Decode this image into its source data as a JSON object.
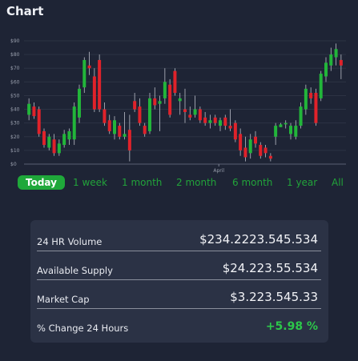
{
  "header": {
    "title": "Chart"
  },
  "chart_data": {
    "type": "candlestick",
    "ylim": [
      0,
      90
    ],
    "yticks": [
      "$0",
      "$10",
      "$20",
      "$30",
      "$40",
      "$50",
      "$60",
      "$70",
      "$80",
      "$90"
    ],
    "x_annotation": "April",
    "up_color": "#22b63a",
    "down_color": "#e0222a",
    "candles": [
      {
        "o": 36,
        "h": 48,
        "l": 32,
        "c": 44
      },
      {
        "o": 42,
        "h": 45,
        "l": 33,
        "c": 35
      },
      {
        "o": 40,
        "h": 42,
        "l": 20,
        "c": 22
      },
      {
        "o": 24,
        "h": 26,
        "l": 12,
        "c": 14
      },
      {
        "o": 12,
        "h": 22,
        "l": 10,
        "c": 20
      },
      {
        "o": 18,
        "h": 22,
        "l": 6,
        "c": 8
      },
      {
        "o": 8,
        "h": 18,
        "l": 6,
        "c": 15
      },
      {
        "o": 14,
        "h": 25,
        "l": 12,
        "c": 22
      },
      {
        "o": 18,
        "h": 26,
        "l": 14,
        "c": 24
      },
      {
        "o": 18,
        "h": 45,
        "l": 14,
        "c": 42
      },
      {
        "o": 34,
        "h": 58,
        "l": 30,
        "c": 55
      },
      {
        "o": 56,
        "h": 78,
        "l": 52,
        "c": 76
      },
      {
        "o": 72,
        "h": 82,
        "l": 65,
        "c": 70
      },
      {
        "o": 64,
        "h": 70,
        "l": 38,
        "c": 40
      },
      {
        "o": 76,
        "h": 80,
        "l": 38,
        "c": 40
      },
      {
        "o": 40,
        "h": 45,
        "l": 28,
        "c": 30
      },
      {
        "o": 32,
        "h": 36,
        "l": 22,
        "c": 24
      },
      {
        "o": 22,
        "h": 35,
        "l": 18,
        "c": 32
      },
      {
        "o": 28,
        "h": 30,
        "l": 18,
        "c": 20
      },
      {
        "o": 20,
        "h": 38,
        "l": 18,
        "c": 22
      },
      {
        "o": 25,
        "h": 36,
        "l": 2,
        "c": 10
      },
      {
        "o": 46,
        "h": 52,
        "l": 38,
        "c": 40
      },
      {
        "o": 42,
        "h": 48,
        "l": 28,
        "c": 30
      },
      {
        "o": 28,
        "h": 30,
        "l": 20,
        "c": 22
      },
      {
        "o": 24,
        "h": 52,
        "l": 22,
        "c": 48
      },
      {
        "o": 48,
        "h": 56,
        "l": 40,
        "c": 43
      },
      {
        "o": 44,
        "h": 50,
        "l": 24,
        "c": 46
      },
      {
        "o": 48,
        "h": 70,
        "l": 44,
        "c": 60
      },
      {
        "o": 58,
        "h": 62,
        "l": 34,
        "c": 36
      },
      {
        "o": 68,
        "h": 70,
        "l": 50,
        "c": 52
      },
      {
        "o": 46,
        "h": 52,
        "l": 36,
        "c": 48
      },
      {
        "o": 40,
        "h": 55,
        "l": 30,
        "c": 38
      },
      {
        "o": 36,
        "h": 42,
        "l": 32,
        "c": 34
      },
      {
        "o": 36,
        "h": 50,
        "l": 34,
        "c": 40
      },
      {
        "o": 40,
        "h": 42,
        "l": 30,
        "c": 32
      },
      {
        "o": 34,
        "h": 38,
        "l": 28,
        "c": 30
      },
      {
        "o": 30,
        "h": 36,
        "l": 26,
        "c": 32
      },
      {
        "o": 34,
        "h": 36,
        "l": 28,
        "c": 30
      },
      {
        "o": 28,
        "h": 34,
        "l": 24,
        "c": 32
      },
      {
        "o": 34,
        "h": 36,
        "l": 25,
        "c": 28
      },
      {
        "o": 28,
        "h": 40,
        "l": 24,
        "c": 26
      },
      {
        "o": 30,
        "h": 32,
        "l": 16,
        "c": 18
      },
      {
        "o": 22,
        "h": 26,
        "l": 6,
        "c": 10
      },
      {
        "o": 12,
        "h": 20,
        "l": 2,
        "c": 5
      },
      {
        "o": 8,
        "h": 22,
        "l": 4,
        "c": 18
      },
      {
        "o": 20,
        "h": 24,
        "l": 12,
        "c": 15
      },
      {
        "o": 14,
        "h": 16,
        "l": 4,
        "c": 6
      },
      {
        "o": 12,
        "h": 14,
        "l": 5,
        "c": 8
      },
      {
        "o": 6,
        "h": 8,
        "l": 2,
        "c": 4
      },
      {
        "o": 20,
        "h": 30,
        "l": 14,
        "c": 28
      },
      {
        "o": 27,
        "h": 30,
        "l": 27,
        "c": 29
      },
      {
        "o": 29,
        "h": 32,
        "l": 26,
        "c": 30
      },
      {
        "o": 22,
        "h": 30,
        "l": 18,
        "c": 28
      },
      {
        "o": 20,
        "h": 32,
        "l": 18,
        "c": 28
      },
      {
        "o": 28,
        "h": 45,
        "l": 26,
        "c": 42
      },
      {
        "o": 40,
        "h": 58,
        "l": 36,
        "c": 55
      },
      {
        "o": 52,
        "h": 56,
        "l": 44,
        "c": 48
      },
      {
        "o": 52,
        "h": 55,
        "l": 28,
        "c": 30
      },
      {
        "o": 48,
        "h": 68,
        "l": 46,
        "c": 66
      },
      {
        "o": 64,
        "h": 78,
        "l": 60,
        "c": 74
      },
      {
        "o": 72,
        "h": 85,
        "l": 68,
        "c": 80
      },
      {
        "o": 78,
        "h": 88,
        "l": 72,
        "c": 84
      },
      {
        "o": 76,
        "h": 80,
        "l": 62,
        "c": 72
      }
    ]
  },
  "ranges": [
    {
      "label": "Today",
      "active": true
    },
    {
      "label": "1 week",
      "active": false
    },
    {
      "label": "1 month",
      "active": false
    },
    {
      "label": "2 month",
      "active": false
    },
    {
      "label": "6 month",
      "active": false
    },
    {
      "label": "1 year",
      "active": false
    },
    {
      "label": "All",
      "active": false
    }
  ],
  "stats": [
    {
      "label": "24 HR Volume",
      "value": "$234.2223.545.534"
    },
    {
      "label": "Available Supply",
      "value": "$24.223.55.534"
    },
    {
      "label": "Market Cap",
      "value": "$3.223.545.33"
    },
    {
      "label": "% Change 24 Hours",
      "value": "+5.98 %",
      "highlight": "#2cc84a"
    }
  ]
}
